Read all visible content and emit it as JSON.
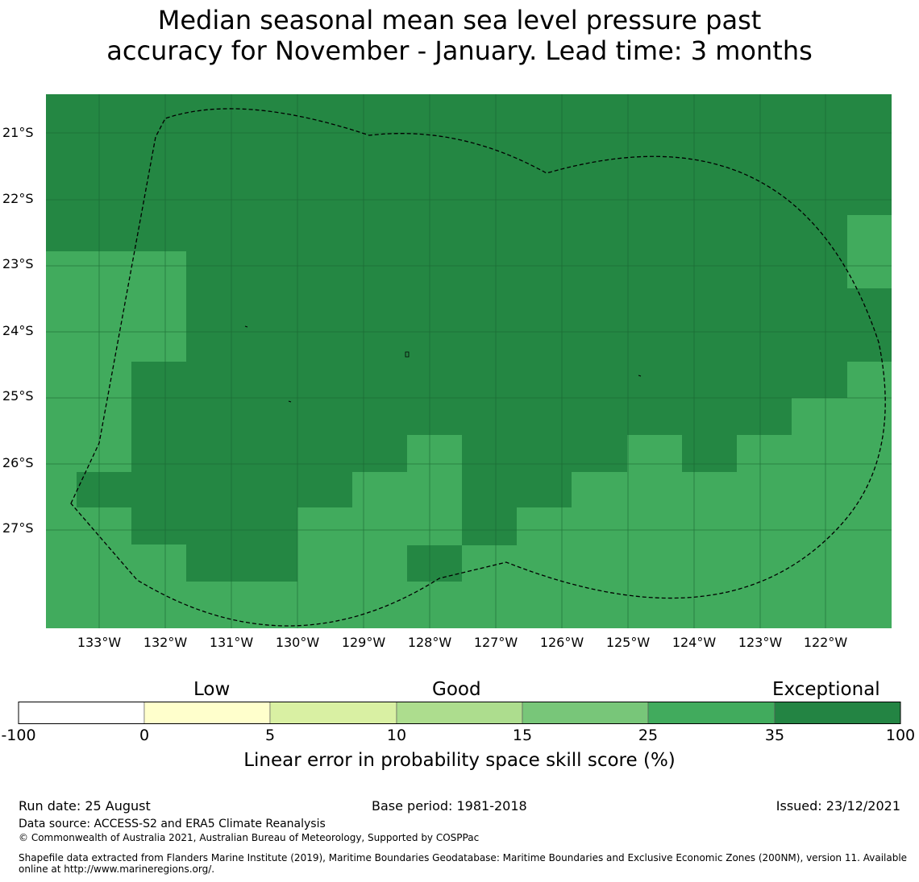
{
  "title_line1": "Median seasonal mean sea level pressure past",
  "title_line2": "accuracy for November - January. Lead time: 3 months",
  "map": {
    "lat_labels": [
      "21°S",
      "22°S",
      "23°S",
      "24°S",
      "25°S",
      "26°S",
      "27°S"
    ],
    "lon_labels": [
      "133°W",
      "132°W",
      "131°W",
      "130°W",
      "129°W",
      "128°W",
      "127°W",
      "126°W",
      "125°W",
      "124°W",
      "123°W",
      "122°W"
    ],
    "boundary": "dashed EEZ outline",
    "colors": {
      "exceptional": "#248743",
      "high": "#41ab5d"
    }
  },
  "colorbar": {
    "category_words": [
      "Low",
      "Good",
      "Exceptional"
    ],
    "ticks": [
      "-100",
      "0",
      "5",
      "10",
      "15",
      "25",
      "35",
      "100"
    ],
    "colors": [
      "#ffffff",
      "#ffffcc",
      "#d9f0a3",
      "#addd8e",
      "#78c679",
      "#41ab5d",
      "#238443"
    ],
    "label": "Linear error in probability space skill score (%)"
  },
  "footer": {
    "run_date": "Run date: 25 August",
    "base_period": "Base period: 1981-2018",
    "issued": "Issued: 23/12/2021",
    "data_source": "Data source: ACCESS-S2 and ERA5 Climate Reanalysis",
    "copyright": "© Commonwealth of Australia 2021, Australian Bureau of Meteorology, Supported by COSPPac",
    "shapefile_line1": "Shapefile data extracted from Flanders Marine Institute (2019), Maritime Boundaries Geodatabase: Maritime Boundaries and Exclusive Economic Zones (200NM), version 11. Available",
    "shapefile_line2": "online at http://www.marineregions.org/."
  }
}
